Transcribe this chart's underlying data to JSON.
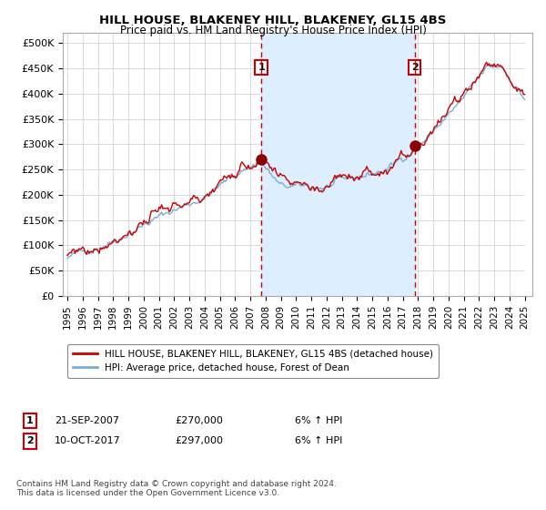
{
  "title": "HILL HOUSE, BLAKENEY HILL, BLAKENEY, GL15 4BS",
  "subtitle": "Price paid vs. HM Land Registry's House Price Index (HPI)",
  "ylabel_ticks": [
    "£0",
    "£50K",
    "£100K",
    "£150K",
    "£200K",
    "£250K",
    "£300K",
    "£350K",
    "£400K",
    "£450K",
    "£500K"
  ],
  "ytick_vals": [
    0,
    50000,
    100000,
    150000,
    200000,
    250000,
    300000,
    350000,
    400000,
    450000,
    500000
  ],
  "ylim": [
    0,
    520000
  ],
  "xlim_start": 1994.7,
  "xlim_end": 2025.5,
  "marker1_x": 2007.72,
  "marker1_y": 270000,
  "marker1_label": "1",
  "marker1_date": "21-SEP-2007",
  "marker1_price": "£270,000",
  "marker1_hpi": "6% ↑ HPI",
  "marker2_x": 2017.78,
  "marker2_y": 297000,
  "marker2_label": "2",
  "marker2_date": "10-OCT-2017",
  "marker2_price": "£297,000",
  "marker2_hpi": "6% ↑ HPI",
  "legend_line1": "HILL HOUSE, BLAKENEY HILL, BLAKENEY, GL15 4BS (detached house)",
  "legend_line2": "HPI: Average price, detached house, Forest of Dean",
  "footer": "Contains HM Land Registry data © Crown copyright and database right 2024.\nThis data is licensed under the Open Government Licence v3.0.",
  "line_color_red": "#cc0000",
  "line_color_blue": "#7aadd4",
  "fill_color": "#ddeeff",
  "background_color": "#ffffff",
  "grid_color": "#cccccc",
  "vline_color": "#cc0000",
  "hatch_color": "#cccccc"
}
